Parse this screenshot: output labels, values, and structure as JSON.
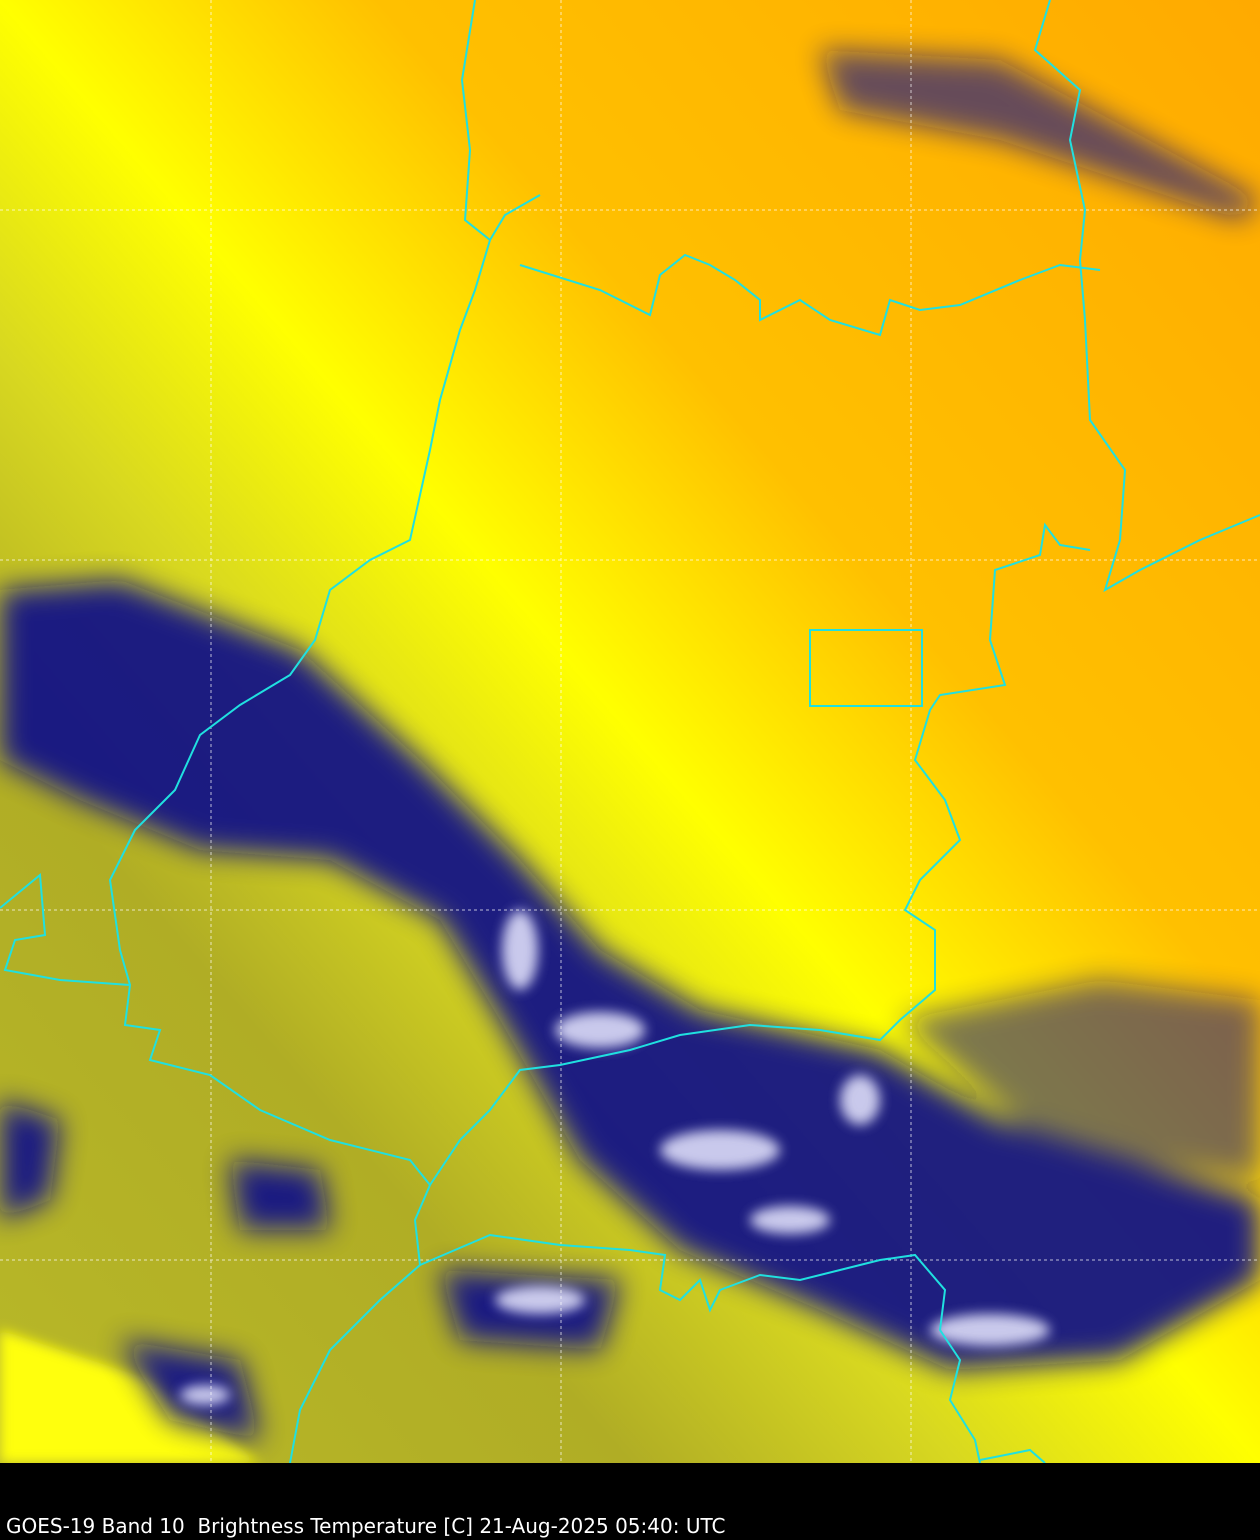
{
  "caption": "GOES-19 Band 10  Brightness Temperature [C] 21-Aug-2025 05:40: UTC",
  "colors": {
    "warm": "#ffb000",
    "mid": "#ffff00",
    "cool": "#b0b020",
    "cold_cloud": "#0a0a80",
    "coldest": "#ffffff",
    "borders": "#20e0e0",
    "gridlines": "#ffffff"
  }
}
